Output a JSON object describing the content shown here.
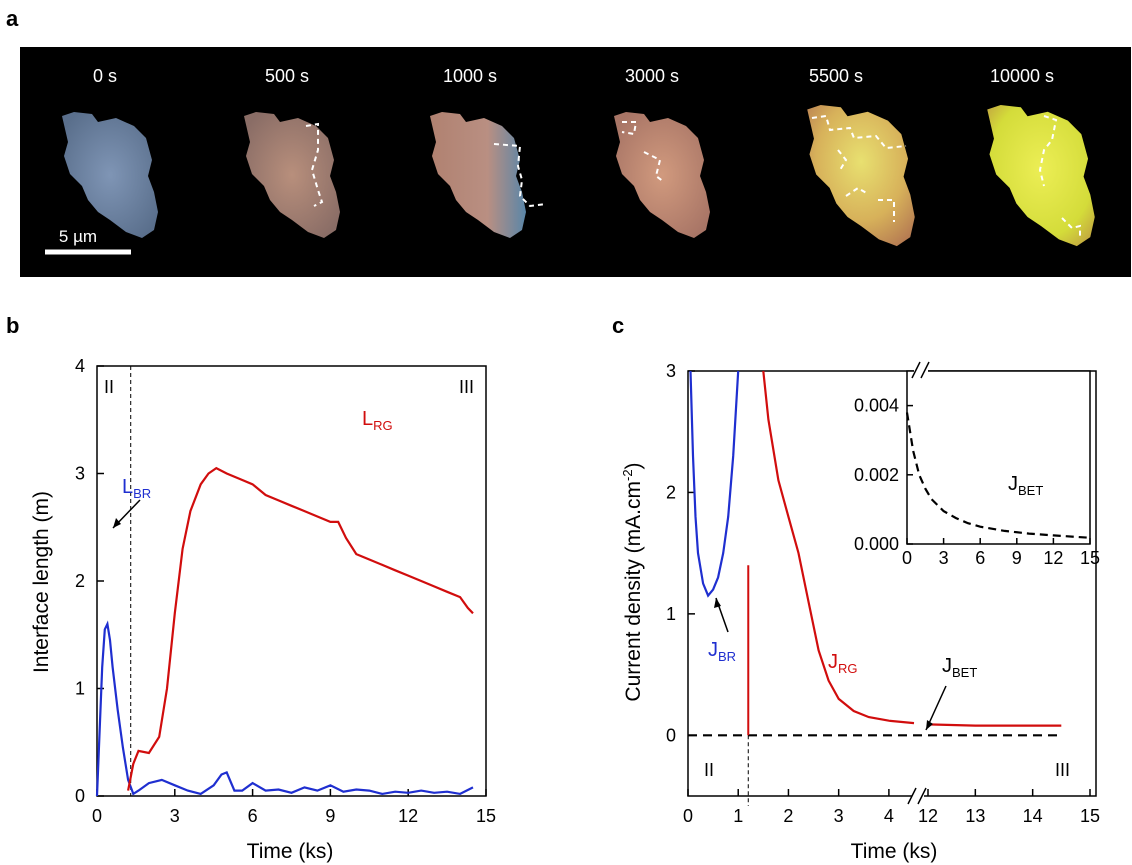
{
  "panels": {
    "a": {
      "letter": "a",
      "time_labels": [
        "0 s",
        "500 s",
        "1000 s",
        "3000 s",
        "5500 s",
        "10000 s"
      ],
      "scale_bar": "5 µm",
      "background": "#000000"
    },
    "b": {
      "letter": "b"
    },
    "c": {
      "letter": "c"
    }
  },
  "chart_data": [
    {
      "type": "line",
      "panel": "b",
      "xlabel": "Time (ks)",
      "ylabel": "Interface length (m)",
      "xlim": [
        0,
        15
      ],
      "ylim": [
        0,
        4
      ],
      "xticks": [
        0,
        3,
        6,
        9,
        12,
        15
      ],
      "yticks": [
        0,
        1,
        2,
        3,
        4
      ],
      "vline_x": 1.3,
      "region_labels": [
        "II",
        "III"
      ],
      "series": [
        {
          "name": "L",
          "subscript": "BR",
          "color": "#1f2fd0",
          "x": [
            0,
            0.1,
            0.2,
            0.3,
            0.4,
            0.5,
            0.6,
            0.8,
            1.0,
            1.2,
            1.4,
            1.6,
            2.0,
            2.5,
            3.0,
            3.5,
            4.0,
            4.5,
            4.8,
            5.0,
            5.3,
            5.6,
            6.0,
            6.5,
            7.0,
            7.5,
            8.0,
            8.5,
            9.0,
            9.5,
            10.0,
            10.5,
            11.0,
            11.5,
            12.0,
            12.5,
            13.0,
            13.5,
            14.0,
            14.5
          ],
          "y": [
            0.0,
            0.6,
            1.2,
            1.55,
            1.6,
            1.45,
            1.2,
            0.8,
            0.45,
            0.15,
            0.02,
            0.05,
            0.12,
            0.15,
            0.1,
            0.05,
            0.02,
            0.1,
            0.2,
            0.22,
            0.05,
            0.05,
            0.12,
            0.05,
            0.06,
            0.03,
            0.08,
            0.05,
            0.1,
            0.04,
            0.06,
            0.05,
            0.02,
            0.04,
            0.03,
            0.05,
            0.03,
            0.04,
            0.02,
            0.08
          ]
        },
        {
          "name": "L",
          "subscript": "RG",
          "color": "#d10d0d",
          "x": [
            1.2,
            1.4,
            1.6,
            2.0,
            2.4,
            2.7,
            3.0,
            3.3,
            3.6,
            4.0,
            4.3,
            4.6,
            5.0,
            5.5,
            6.0,
            6.5,
            7.0,
            7.5,
            8.0,
            8.5,
            9.0,
            9.3,
            9.6,
            10.0,
            10.5,
            11.0,
            11.5,
            12.0,
            12.5,
            13.0,
            13.5,
            14.0,
            14.3,
            14.5
          ],
          "y": [
            0.05,
            0.3,
            0.42,
            0.4,
            0.55,
            1.0,
            1.7,
            2.3,
            2.65,
            2.9,
            3.0,
            3.05,
            3.0,
            2.95,
            2.9,
            2.8,
            2.75,
            2.7,
            2.65,
            2.6,
            2.55,
            2.55,
            2.4,
            2.25,
            2.2,
            2.15,
            2.1,
            2.05,
            2.0,
            1.95,
            1.9,
            1.85,
            1.75,
            1.7
          ]
        }
      ]
    },
    {
      "type": "line",
      "panel": "c",
      "xlabel": "Time (ks)",
      "ylabel": "Current density (mA.cm",
      "ylabel_sup": "-2",
      "ylabel_end": ")",
      "xlim": [
        0,
        15
      ],
      "ylim": [
        -0.5,
        3
      ],
      "xticks": [
        0,
        1,
        2,
        3,
        4,
        12,
        13,
        14,
        15
      ],
      "yticks": [
        0,
        1,
        2,
        3
      ],
      "axis_break_at": 12,
      "vline_x": 1.2,
      "region_labels": [
        "II",
        "III"
      ],
      "series": [
        {
          "name": "J",
          "subscript": "BR",
          "color": "#1f2fd0",
          "x": [
            0.05,
            0.1,
            0.15,
            0.2,
            0.3,
            0.4,
            0.5,
            0.6,
            0.7,
            0.8,
            0.9,
            1.0
          ],
          "y": [
            3.0,
            2.3,
            1.8,
            1.5,
            1.25,
            1.15,
            1.2,
            1.3,
            1.5,
            1.8,
            2.3,
            3.0
          ]
        },
        {
          "name": "J",
          "subscript": "RG",
          "color": "#d10d0d",
          "x": [
            1.5,
            1.6,
            1.8,
            2.0,
            2.2,
            2.4,
            2.6,
            2.8,
            3.0,
            3.3,
            3.6,
            4.0,
            4.5,
            12.0,
            13.0,
            14.0,
            14.5
          ],
          "y": [
            3.0,
            2.6,
            2.1,
            1.8,
            1.5,
            1.1,
            0.7,
            0.45,
            0.3,
            0.2,
            0.15,
            0.12,
            0.1,
            0.09,
            0.08,
            0.08,
            0.08
          ]
        },
        {
          "name": "J",
          "subscript": "BET",
          "color": "#000000",
          "dashed": true,
          "x": [
            0,
            14.5
          ],
          "y": [
            0,
            0
          ]
        }
      ],
      "inset": {
        "xlim": [
          0,
          15
        ],
        "ylim": [
          0,
          0.005
        ],
        "xticks": [
          0,
          3,
          6,
          9,
          12,
          15
        ],
        "yticks": [
          0.0,
          0.002,
          0.004
        ],
        "ytick_labels": [
          "0.000",
          "0.002",
          "0.004"
        ],
        "series": {
          "name": "J",
          "subscript": "BET",
          "color": "#000000",
          "dashed": true,
          "x": [
            0,
            0.5,
            1,
            1.5,
            2,
            3,
            4,
            5,
            6,
            8,
            10,
            12,
            15
          ],
          "y": [
            0.0038,
            0.0027,
            0.002,
            0.0016,
            0.0013,
            0.00095,
            0.00075,
            0.0006,
            0.0005,
            0.00038,
            0.0003,
            0.00025,
            0.00018
          ]
        }
      }
    }
  ]
}
